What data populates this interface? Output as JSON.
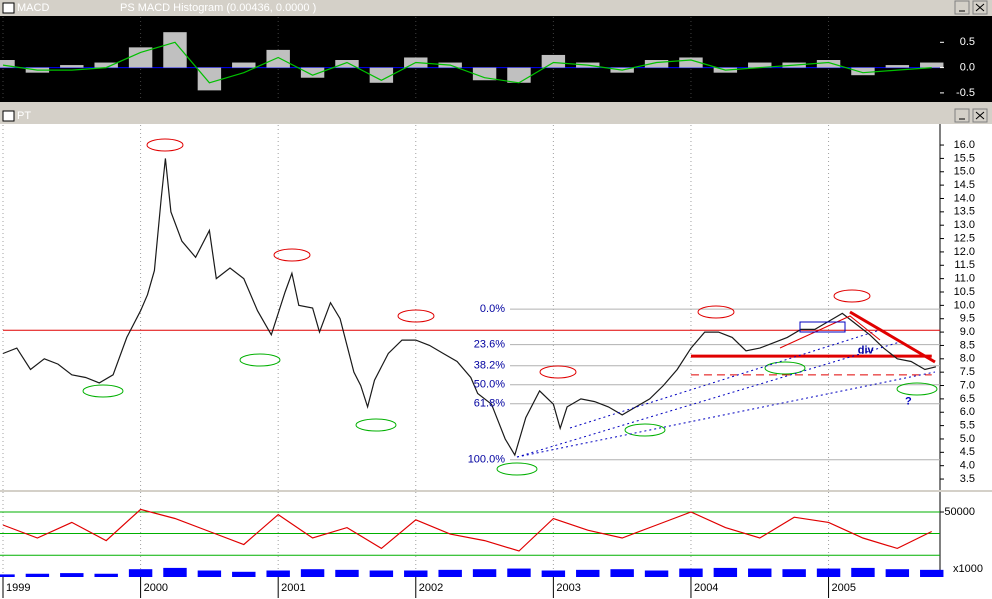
{
  "chart_data": [
    {
      "type": "line",
      "x": [
        1999.0,
        1999.25,
        1999.5,
        1999.75,
        2000.0,
        2000.25,
        2000.5,
        2000.75,
        2001.0,
        2001.25,
        2001.5,
        2001.75,
        2002.0,
        2002.25,
        2002.5,
        2002.75,
        2003.0,
        2003.25,
        2003.5,
        2003.75,
        2004.0,
        2004.25,
        2004.5,
        2004.75,
        2005.0,
        2005.25,
        2005.5,
        2005.75
      ],
      "series": [
        {
          "name": "MACD",
          "color": "#00c000",
          "values": [
            0.05,
            -0.05,
            -0.05,
            0.0,
            0.3,
            0.5,
            -0.3,
            -0.1,
            0.2,
            -0.15,
            0.1,
            -0.25,
            0.1,
            0.05,
            -0.2,
            -0.3,
            0.1,
            0.05,
            -0.05,
            0.1,
            0.15,
            -0.05,
            0.0,
            0.05,
            0.1,
            -0.1,
            -0.05,
            0.0
          ]
        },
        {
          "name": "PS MACD Histogram (0.00436, 0.0000 )",
          "color": "#c0c0c0",
          "kind": "bar",
          "values": [
            0.15,
            -0.1,
            0.05,
            0.1,
            0.4,
            0.7,
            -0.45,
            0.1,
            0.35,
            -0.2,
            0.15,
            -0.3,
            0.2,
            0.1,
            -0.25,
            -0.3,
            0.25,
            0.1,
            -0.1,
            0.15,
            0.2,
            -0.1,
            0.1,
            0.1,
            0.15,
            -0.15,
            0.05,
            0.1
          ]
        }
      ],
      "xlim": [
        1999,
        2005.81
      ],
      "ylim": [
        -0.66,
        1.0
      ],
      "yticks": [
        0.5,
        {
          "value": 0,
          "label": "0.0"
        },
        -0.5
      ],
      "zero_line_color": "#0000ff",
      "background": "#000000"
    },
    {
      "type": "line",
      "title": "PT",
      "color": "#1a1a1a",
      "x": [
        1999.0,
        1999.1,
        1999.2,
        1999.3,
        1999.4,
        1999.5,
        1999.6,
        1999.7,
        1999.8,
        1999.9,
        2000.0,
        2000.05,
        2000.1,
        2000.15,
        2000.18,
        2000.22,
        2000.3,
        2000.4,
        2000.5,
        2000.55,
        2000.65,
        2000.75,
        2000.85,
        2000.95,
        2001.05,
        2001.1,
        2001.15,
        2001.25,
        2001.3,
        2001.38,
        2001.45,
        2001.55,
        2001.6,
        2001.65,
        2001.7,
        2001.8,
        2001.9,
        2002.0,
        2002.1,
        2002.2,
        2002.3,
        2002.4,
        2002.45,
        2002.55,
        2002.65,
        2002.72,
        2002.8,
        2002.9,
        2003.0,
        2003.05,
        2003.1,
        2003.2,
        2003.3,
        2003.4,
        2003.5,
        2003.6,
        2003.7,
        2003.8,
        2003.9,
        2004.0,
        2004.1,
        2004.2,
        2004.3,
        2004.4,
        2004.5,
        2004.6,
        2004.7,
        2004.8,
        2004.9,
        2005.0,
        2005.1,
        2005.2,
        2005.3,
        2005.4,
        2005.5,
        2005.6,
        2005.7,
        2005.78
      ],
      "values": [
        8.2,
        8.4,
        7.6,
        8.0,
        7.8,
        7.4,
        7.3,
        7.1,
        7.4,
        8.8,
        9.8,
        10.4,
        11.3,
        14.0,
        15.5,
        13.5,
        12.4,
        11.8,
        12.8,
        11.0,
        11.4,
        11.0,
        9.8,
        8.9,
        10.5,
        11.2,
        10.0,
        9.9,
        9.0,
        10.1,
        9.5,
        7.5,
        7.0,
        6.2,
        7.2,
        8.2,
        8.7,
        8.7,
        8.5,
        8.2,
        7.9,
        7.3,
        6.7,
        6.3,
        5.0,
        4.4,
        5.8,
        6.8,
        6.3,
        5.4,
        6.2,
        6.5,
        6.4,
        6.2,
        5.9,
        6.2,
        6.5,
        7.0,
        7.6,
        8.4,
        9.0,
        9.0,
        8.8,
        8.3,
        8.4,
        8.6,
        8.8,
        9.1,
        9.1,
        9.4,
        9.7,
        9.3,
        8.9,
        8.4,
        8.0,
        7.9,
        7.6,
        7.7
      ],
      "xlim": [
        1999,
        2005.81
      ],
      "ylim": [
        3.09,
        16.75
      ],
      "yticks": [
        3.5,
        {
          "value": 4,
          "label": "4.0"
        },
        4.5,
        {
          "value": 5,
          "label": "5.0"
        },
        5.5,
        {
          "value": 6,
          "label": "6.0"
        },
        6.5,
        {
          "value": 7,
          "label": "7.0"
        },
        7.5,
        {
          "value": 8,
          "label": "8.0"
        },
        8.5,
        {
          "value": 9,
          "label": "9.0"
        },
        9.5,
        {
          "value": 10,
          "label": "10.0"
        },
        10.5,
        {
          "value": 11,
          "label": "11.0"
        },
        11.5,
        {
          "value": 12,
          "label": "12.0"
        },
        12.5,
        {
          "value": 13,
          "label": "13.0"
        },
        13.5,
        {
          "value": 14,
          "label": "14.0"
        },
        14.5,
        {
          "value": 15,
          "label": "15.0"
        },
        15.5,
        {
          "value": 16,
          "label": "16.0"
        }
      ],
      "fib_levels": [
        {
          "label": "0.0%",
          "value": 9.86
        },
        {
          "label": "23.6%",
          "value": 8.53
        },
        {
          "label": "38.2%",
          "value": 7.74
        },
        {
          "label": "50.0%",
          "value": 7.03
        },
        {
          "label": "61.8%",
          "value": 6.32
        },
        {
          "label": "100.0%",
          "value": 4.22
        }
      ],
      "lines": [
        {
          "value": 9.07,
          "color": "#e00000",
          "x": [
            1999,
            2005.81
          ],
          "width": 1,
          "dash": "none"
        },
        {
          "value": 8.1,
          "color": "#e00000",
          "x": [
            2004,
            2005.75
          ],
          "width": 3,
          "dash": "none"
        },
        {
          "value": 7.4,
          "color": "#e00000",
          "x": [
            2004,
            2005.75
          ],
          "width": 1,
          "dash": "8 5"
        }
      ],
      "annotations": [
        {
          "text": "div",
          "x": 2005.27,
          "y": 8.3,
          "color": "#0000a0",
          "size": 11
        },
        {
          "text": "?",
          "x": 2005.58,
          "y": 6.4,
          "color": "#0000c0",
          "size": 22
        }
      ]
    },
    {
      "type": "line",
      "x": [
        1999.0,
        1999.25,
        1999.5,
        1999.75,
        2000.0,
        2000.25,
        2000.5,
        2000.75,
        2001.0,
        2001.25,
        2001.5,
        2001.75,
        2002.0,
        2002.25,
        2002.5,
        2002.75,
        2003.0,
        2003.25,
        2003.5,
        2003.75,
        2004.0,
        2004.25,
        2004.5,
        2004.75,
        2005.0,
        2005.25,
        2005.5,
        2005.75
      ],
      "series": [
        {
          "color": "#e00000",
          "values": [
            40000,
            30000,
            42000,
            28000,
            52000,
            45000,
            35000,
            25000,
            48000,
            30000,
            38000,
            22000,
            44000,
            33000,
            28000,
            20000,
            45000,
            36000,
            30000,
            40000,
            50000,
            38000,
            30000,
            46000,
            42000,
            30000,
            22000,
            35000
          ]
        },
        {
          "color": "#0000ff",
          "kind": "bar",
          "values": [
            2000,
            2500,
            3000,
            2500,
            6000,
            7000,
            5000,
            4000,
            5000,
            6000,
            5500,
            5000,
            5000,
            5500,
            6000,
            6500,
            5000,
            5500,
            6000,
            5000,
            6500,
            7000,
            6500,
            6000,
            6500,
            7000,
            6000,
            5500
          ]
        }
      ],
      "xlim": [
        1999,
        2005.81
      ],
      "ylim": [
        0,
        65400
      ],
      "yticks": [
        50000
      ],
      "unit_label": "x1000",
      "bands": [
        16700,
        33500,
        50000
      ],
      "band_color": "#00b000",
      "xticks": [
        1999,
        2000,
        2001,
        2002,
        2003,
        2004,
        2005
      ]
    }
  ]
}
